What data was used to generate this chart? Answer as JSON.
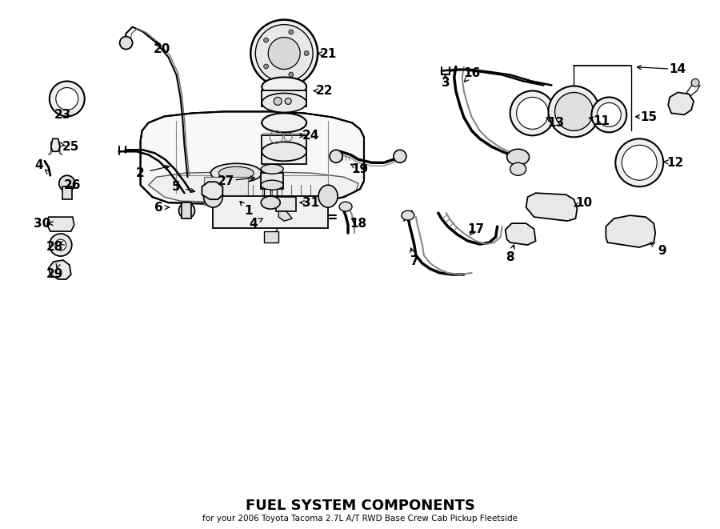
{
  "title": "FUEL SYSTEM COMPONENTS",
  "subtitle": "for your 2006 Toyota Tacoma 2.7L A/T RWD Base Crew Cab Pickup Fleetside",
  "bg_color": "#ffffff",
  "line_color": "#000000",
  "fig_width": 9.0,
  "fig_height": 6.61,
  "dpi": 100
}
